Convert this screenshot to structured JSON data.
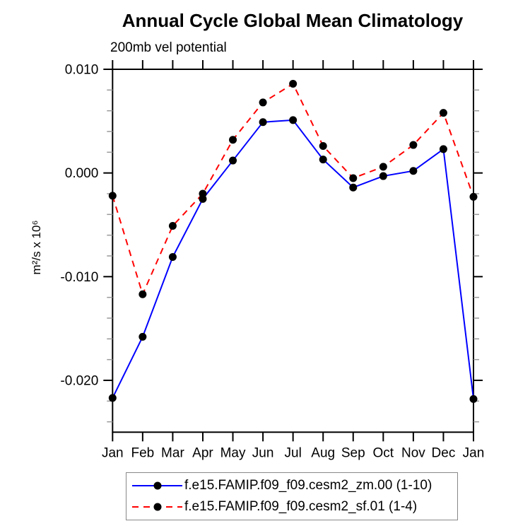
{
  "chart_data": {
    "type": "line",
    "title": "Annual Cycle Global Mean Climatology",
    "subtitle": "200mb vel potential",
    "ylabel": "m²/s x 10⁶",
    "xlabel": "",
    "categories": [
      "Jan",
      "Feb",
      "Mar",
      "Apr",
      "May",
      "Jun",
      "Jul",
      "Aug",
      "Sep",
      "Oct",
      "Nov",
      "Dec",
      "Jan"
    ],
    "ylim": [
      -0.025,
      0.01
    ],
    "yticks": [
      {
        "value": 0.01,
        "label": "0.010"
      },
      {
        "value": 0.0,
        "label": "0.000"
      },
      {
        "value": -0.01,
        "label": "-0.010"
      },
      {
        "value": -0.02,
        "label": "-0.020"
      }
    ],
    "y_minor_step": 0.002,
    "grid": "off",
    "legend_position": "bottom",
    "marker": {
      "shape": "circle",
      "color": "#000000",
      "radius": 5.5
    },
    "series": [
      {
        "name": "f.e15.FAMIP.f09_f09.cesm2_zm.00 (1-10)",
        "color": "#0000ff",
        "line_style": "solid",
        "values": [
          -0.0217,
          -0.0158,
          -0.0081,
          -0.0025,
          0.0012,
          0.0049,
          0.0051,
          0.0013,
          -0.0014,
          -0.0003,
          0.0002,
          0.0023,
          -0.0218
        ]
      },
      {
        "name": "f.e15.FAMIP.f09_f09.cesm2_sf.01 (1-4)",
        "color": "#ff0000",
        "line_style": "dashed",
        "values": [
          -0.0022,
          -0.0117,
          -0.0051,
          -0.002,
          0.0032,
          0.0068,
          0.0086,
          0.0026,
          -0.0005,
          0.0006,
          0.0027,
          0.0058,
          -0.0023
        ]
      }
    ]
  }
}
